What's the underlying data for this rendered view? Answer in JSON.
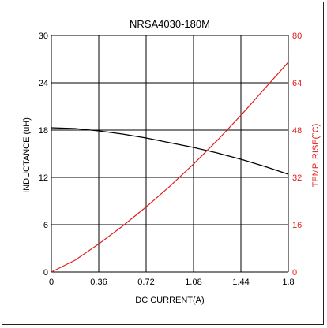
{
  "chart_data": {
    "type": "line",
    "title": "NRSA4030-180M",
    "xlabel": "DC CURRENT(A)",
    "ylabel_left": "INDUCTANCE (uH)",
    "ylabel_right": "TEMP. RISE(°C)",
    "xlim": [
      0,
      1.8
    ],
    "ylim_left": [
      0,
      30
    ],
    "ylim_right": [
      0,
      80
    ],
    "x_ticks": [
      "0",
      "0.36",
      "0.72",
      "1.08",
      "1.44",
      "1.8"
    ],
    "y_left_ticks": [
      "0",
      "6",
      "12",
      "18",
      "24",
      "30"
    ],
    "y_right_ticks": [
      "0",
      "16",
      "32",
      "48",
      "64",
      "80"
    ],
    "grid": true,
    "colors": {
      "inductance": "#000000",
      "temp_rise": "#e0201c",
      "grid": "#000000",
      "frame": "#222222"
    },
    "series": [
      {
        "axis": "left",
        "color": "#000000",
        "x": [
          0,
          0.18,
          0.36,
          0.54,
          0.72,
          0.9,
          1.08,
          1.26,
          1.44,
          1.62,
          1.8
        ],
        "values": [
          18.3,
          18.2,
          17.9,
          17.5,
          17.0,
          16.4,
          15.8,
          15.1,
          14.3,
          13.4,
          12.4
        ]
      },
      {
        "axis": "right",
        "color": "#e0201c",
        "x": [
          0,
          0.18,
          0.36,
          0.54,
          0.72,
          0.9,
          1.08,
          1.26,
          1.44,
          1.62,
          1.8
        ],
        "values": [
          0,
          4,
          9.5,
          15.5,
          22,
          29,
          36.5,
          44.5,
          53,
          62,
          71
        ]
      }
    ]
  }
}
